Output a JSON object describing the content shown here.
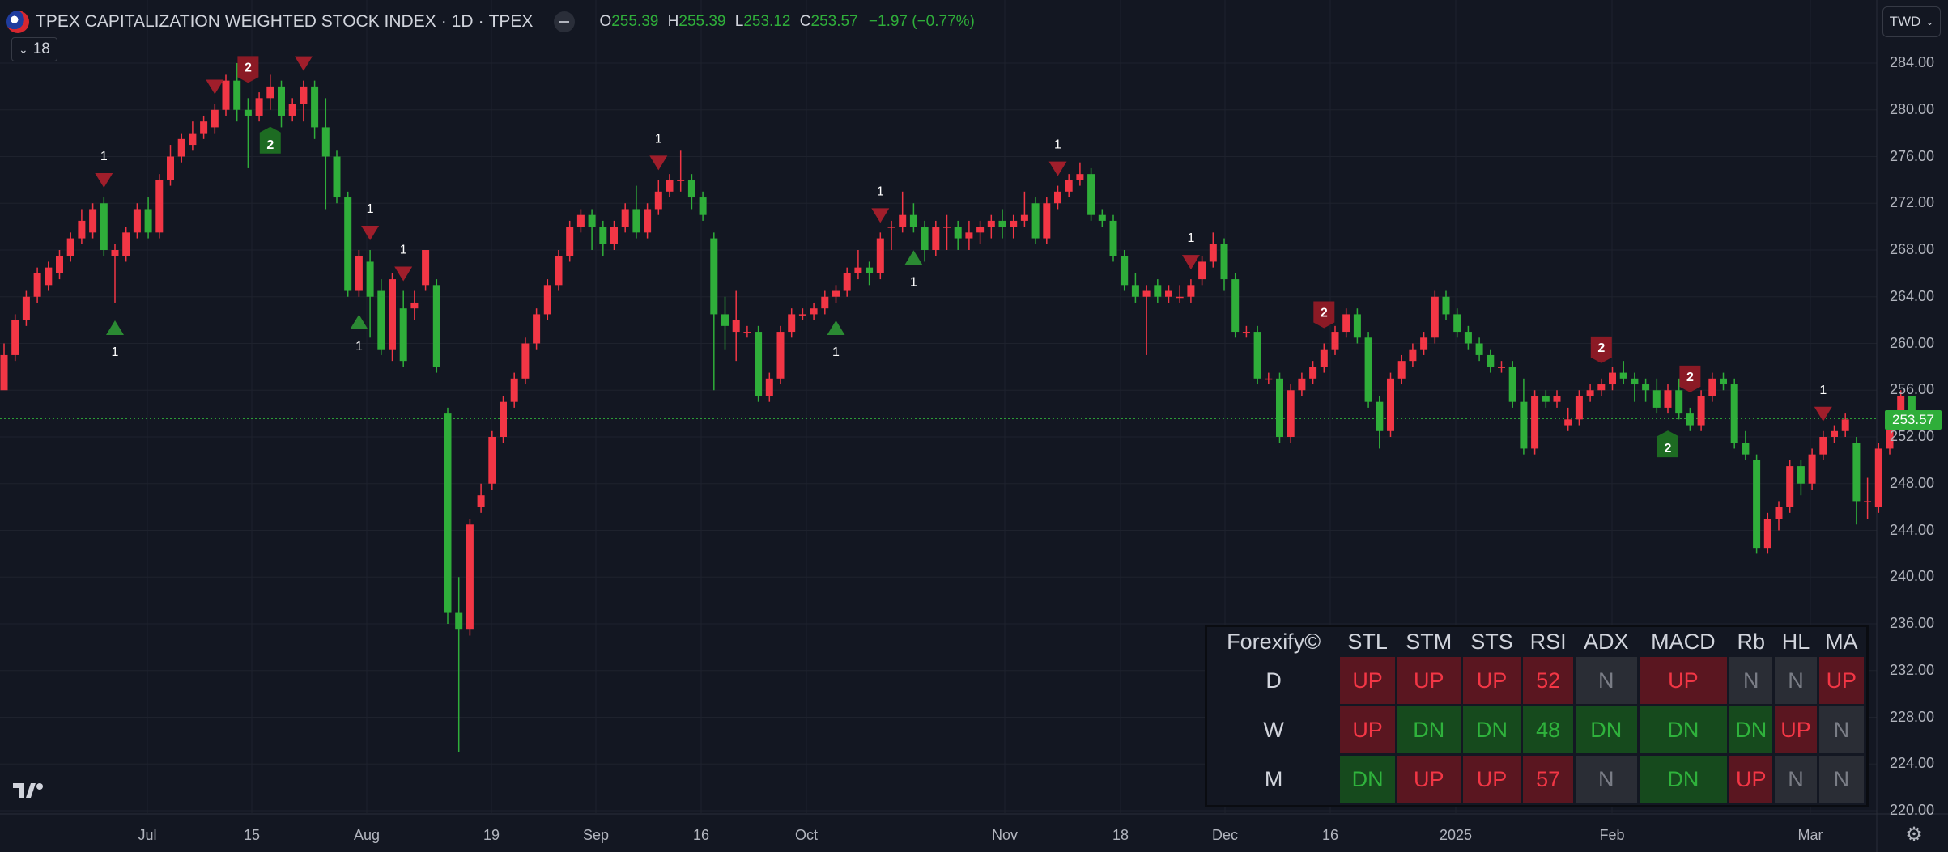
{
  "header": {
    "title": "TPEX CAPITALIZATION WEIGHTED STOCK INDEX",
    "interval": "1D",
    "exchange": "TPEX",
    "sep": "·",
    "o_label": "O",
    "o": "255.39",
    "h_label": "H",
    "h": "255.39",
    "l_label": "L",
    "l": "253.12",
    "c_label": "C",
    "c": "253.57",
    "change": "−1.97 (−0.77%)"
  },
  "indicator_pill": {
    "count": "18"
  },
  "currency_button": {
    "label": "TWD"
  },
  "last_price": "253.57",
  "colors": {
    "up": "#f23645",
    "down": "#2fae3a",
    "background": "#131722",
    "grid": "#1e222d"
  },
  "price_axis": [
    "284.00",
    "280.00",
    "276.00",
    "272.00",
    "268.00",
    "264.00",
    "260.00",
    "256.00",
    "252.00",
    "248.00",
    "244.00",
    "240.00",
    "236.00",
    "232.00",
    "228.00",
    "224.00",
    "220.00"
  ],
  "time_axis": [
    "Jul",
    "15",
    "Aug",
    "19",
    "Sep",
    "16",
    "Oct",
    "Nov",
    "18",
    "Dec",
    "16",
    "2025",
    "Feb",
    "Mar"
  ],
  "chart_data": {
    "type": "candlestick",
    "ylim": [
      220,
      286
    ],
    "candles": [
      [
        256.0,
        260.0,
        256.5,
        259.0
      ],
      [
        259.0,
        262.5,
        258.5,
        262.0
      ],
      [
        262.0,
        264.5,
        261.5,
        264.0
      ],
      [
        264.0,
        266.5,
        263.5,
        266.0
      ],
      [
        265.0,
        267.0,
        264.5,
        266.5
      ],
      [
        266.0,
        268.0,
        265.5,
        267.5
      ],
      [
        267.5,
        269.5,
        267.0,
        269.0
      ],
      [
        269.0,
        271.5,
        268.5,
        270.5
      ],
      [
        269.5,
        272.0,
        269.0,
        271.5
      ],
      [
        272.0,
        272.5,
        267.5,
        268.0
      ],
      [
        267.5,
        268.5,
        263.5,
        268.0
      ],
      [
        267.5,
        270.0,
        267.0,
        269.5
      ],
      [
        269.5,
        272.0,
        269.0,
        271.5
      ],
      [
        271.5,
        272.5,
        269.0,
        269.5
      ],
      [
        269.5,
        274.5,
        269.0,
        274.0
      ],
      [
        274.0,
        277.0,
        273.5,
        276.0
      ],
      [
        276.0,
        278.0,
        275.5,
        277.5
      ],
      [
        277.0,
        279.0,
        276.5,
        278.0
      ],
      [
        278.0,
        279.5,
        277.5,
        279.0
      ],
      [
        278.5,
        280.5,
        278.0,
        280.0
      ],
      [
        280.0,
        283.0,
        279.5,
        282.5
      ],
      [
        282.5,
        284.0,
        279.0,
        280.0
      ],
      [
        280.0,
        281.0,
        275.0,
        279.5
      ],
      [
        279.5,
        281.5,
        279.0,
        281.0
      ],
      [
        281.0,
        283.0,
        280.0,
        282.0
      ],
      [
        282.0,
        282.5,
        278.5,
        279.5
      ],
      [
        279.5,
        281.0,
        279.0,
        280.5
      ],
      [
        280.5,
        282.5,
        279.0,
        282.0
      ],
      [
        282.0,
        282.5,
        277.5,
        278.5
      ],
      [
        278.5,
        281.0,
        271.5,
        276.0
      ],
      [
        276.0,
        276.5,
        272.0,
        272.5
      ],
      [
        272.5,
        273.0,
        264.0,
        264.5
      ],
      [
        264.5,
        268.0,
        264.0,
        267.5
      ],
      [
        267.0,
        268.0,
        260.5,
        264.0
      ],
      [
        264.5,
        265.5,
        259.0,
        259.5
      ],
      [
        259.5,
        266.0,
        258.5,
        265.5
      ],
      [
        263.0,
        264.5,
        258.0,
        258.5
      ],
      [
        263.0,
        264.5,
        262.0,
        263.5
      ],
      [
        265.0,
        268.0,
        264.5,
        268.0
      ],
      [
        265.0,
        265.5,
        257.5,
        258.0
      ],
      [
        254.0,
        254.5,
        236.0,
        237.0
      ],
      [
        237.0,
        240.0,
        225.0,
        235.5
      ],
      [
        235.5,
        245.0,
        235.0,
        244.5
      ],
      [
        246.0,
        248.0,
        245.5,
        247.0
      ],
      [
        248.0,
        252.5,
        247.5,
        252.0
      ],
      [
        252.0,
        255.5,
        251.5,
        255.0
      ],
      [
        255.0,
        257.5,
        254.5,
        257.0
      ],
      [
        257.0,
        260.5,
        256.5,
        260.0
      ],
      [
        260.0,
        263.0,
        259.5,
        262.5
      ],
      [
        262.5,
        265.5,
        262.0,
        265.0
      ],
      [
        265.0,
        268.0,
        264.5,
        267.5
      ],
      [
        267.5,
        270.5,
        267.0,
        270.0
      ],
      [
        270.0,
        271.5,
        269.5,
        271.0
      ],
      [
        271.0,
        271.5,
        268.0,
        270.0
      ],
      [
        270.0,
        270.5,
        267.5,
        268.5
      ],
      [
        268.5,
        270.5,
        268.0,
        270.0
      ],
      [
        270.0,
        272.0,
        269.5,
        271.5
      ],
      [
        271.5,
        273.5,
        269.0,
        269.5
      ],
      [
        269.5,
        272.0,
        269.0,
        271.5
      ],
      [
        271.5,
        274.0,
        271.0,
        273.0
      ],
      [
        273.0,
        274.5,
        272.5,
        274.0
      ],
      [
        274.0,
        276.5,
        273.0,
        274.0
      ],
      [
        274.0,
        274.5,
        271.5,
        272.5
      ],
      [
        272.5,
        273.0,
        270.5,
        271.0
      ],
      [
        269.0,
        269.5,
        256.0,
        262.5
      ],
      [
        262.5,
        264.0,
        259.5,
        261.5
      ],
      [
        261.0,
        264.5,
        258.5,
        262.0
      ],
      [
        261.0,
        261.5,
        260.5,
        261.0
      ],
      [
        261.0,
        261.5,
        255.0,
        255.5
      ],
      [
        255.5,
        257.5,
        255.0,
        257.0
      ],
      [
        257.0,
        261.5,
        256.5,
        261.0
      ],
      [
        261.0,
        263.0,
        260.5,
        262.5
      ],
      [
        262.5,
        263.0,
        262.0,
        262.5
      ],
      [
        262.5,
        263.5,
        262.0,
        263.0
      ],
      [
        263.0,
        264.5,
        262.5,
        264.0
      ],
      [
        264.0,
        265.0,
        263.5,
        264.5
      ],
      [
        264.5,
        266.5,
        264.0,
        266.0
      ],
      [
        266.0,
        268.0,
        265.5,
        266.5
      ],
      [
        266.5,
        267.0,
        265.0,
        266.0
      ],
      [
        266.0,
        269.5,
        265.5,
        269.0
      ],
      [
        270.0,
        270.5,
        268.0,
        270.0
      ],
      [
        270.0,
        273.0,
        269.5,
        271.0
      ],
      [
        271.0,
        272.0,
        269.5,
        270.0
      ],
      [
        270.0,
        270.5,
        267.0,
        268.0
      ],
      [
        268.0,
        270.5,
        267.5,
        270.0
      ],
      [
        270.0,
        271.0,
        268.0,
        270.0
      ],
      [
        270.0,
        270.5,
        268.0,
        269.0
      ],
      [
        269.0,
        270.5,
        268.0,
        269.5
      ],
      [
        269.5,
        270.5,
        268.5,
        270.0
      ],
      [
        270.0,
        271.0,
        269.0,
        270.5
      ],
      [
        270.5,
        271.5,
        269.0,
        270.0
      ],
      [
        270.0,
        271.0,
        269.0,
        270.5
      ],
      [
        270.5,
        273.0,
        270.0,
        271.0
      ],
      [
        272.0,
        272.5,
        268.5,
        269.0
      ],
      [
        269.0,
        272.5,
        268.5,
        272.0
      ],
      [
        272.0,
        273.5,
        271.5,
        273.0
      ],
      [
        273.0,
        274.5,
        272.5,
        274.0
      ],
      [
        274.0,
        275.5,
        273.5,
        274.5
      ],
      [
        274.5,
        275.0,
        270.5,
        271.0
      ],
      [
        271.0,
        271.5,
        270.0,
        270.5
      ],
      [
        270.5,
        271.0,
        267.0,
        267.5
      ],
      [
        267.5,
        268.0,
        264.5,
        265.0
      ],
      [
        265.0,
        266.0,
        263.5,
        264.0
      ],
      [
        264.0,
        265.0,
        259.0,
        264.5
      ],
      [
        265.0,
        265.5,
        263.5,
        264.0
      ],
      [
        264.0,
        265.0,
        263.5,
        264.5
      ],
      [
        264.0,
        265.0,
        263.5,
        264.0
      ],
      [
        264.0,
        265.5,
        263.5,
        265.0
      ],
      [
        265.5,
        267.5,
        265.0,
        267.0
      ],
      [
        267.0,
        269.5,
        266.5,
        268.5
      ],
      [
        268.5,
        269.0,
        264.5,
        265.5
      ],
      [
        265.5,
        266.0,
        260.5,
        261.0
      ],
      [
        261.0,
        261.5,
        260.5,
        261.0
      ],
      [
        261.0,
        261.5,
        256.5,
        257.0
      ],
      [
        257.0,
        257.5,
        256.5,
        257.0
      ],
      [
        257.0,
        257.5,
        251.5,
        252.0
      ],
      [
        252.0,
        256.5,
        251.5,
        256.0
      ],
      [
        256.0,
        257.5,
        255.5,
        257.0
      ],
      [
        257.0,
        258.5,
        256.5,
        258.0
      ],
      [
        258.0,
        260.0,
        257.5,
        259.5
      ],
      [
        259.5,
        261.5,
        259.0,
        261.0
      ],
      [
        261.0,
        263.0,
        260.5,
        262.5
      ],
      [
        262.5,
        263.0,
        260.0,
        260.5
      ],
      [
        260.5,
        261.0,
        254.5,
        255.0
      ],
      [
        255.0,
        255.5,
        251.0,
        252.5
      ],
      [
        252.5,
        257.5,
        252.0,
        257.0
      ],
      [
        257.0,
        259.0,
        256.5,
        258.5
      ],
      [
        258.5,
        260.0,
        258.0,
        259.5
      ],
      [
        259.5,
        261.0,
        259.0,
        260.5
      ],
      [
        260.5,
        264.5,
        260.0,
        264.0
      ],
      [
        264.0,
        264.5,
        262.0,
        262.5
      ],
      [
        262.5,
        263.0,
        260.5,
        261.0
      ],
      [
        261.0,
        261.5,
        259.5,
        260.0
      ],
      [
        260.0,
        260.5,
        258.5,
        259.0
      ],
      [
        259.0,
        259.5,
        257.5,
        258.0
      ],
      [
        258.0,
        258.5,
        257.5,
        258.0
      ],
      [
        258.0,
        258.5,
        254.5,
        255.0
      ],
      [
        255.0,
        257.0,
        250.5,
        251.0
      ],
      [
        251.0,
        256.0,
        250.5,
        255.5
      ],
      [
        255.5,
        256.0,
        254.5,
        255.0
      ],
      [
        255.0,
        256.0,
        254.5,
        255.5
      ],
      [
        253.0,
        254.5,
        252.5,
        253.5
      ],
      [
        253.5,
        256.0,
        253.0,
        255.5
      ],
      [
        255.5,
        256.5,
        255.0,
        256.0
      ],
      [
        256.0,
        257.0,
        255.5,
        256.5
      ],
      [
        256.5,
        258.0,
        256.0,
        257.5
      ],
      [
        257.5,
        258.5,
        256.5,
        257.0
      ],
      [
        257.0,
        257.5,
        255.0,
        256.5
      ],
      [
        256.5,
        257.0,
        255.0,
        256.0
      ],
      [
        256.0,
        257.0,
        254.0,
        254.5
      ],
      [
        254.5,
        256.5,
        254.0,
        256.0
      ],
      [
        256.0,
        257.0,
        253.5,
        254.0
      ],
      [
        254.0,
        254.5,
        252.5,
        253.0
      ],
      [
        253.0,
        256.0,
        252.5,
        255.5
      ],
      [
        255.5,
        257.5,
        255.0,
        257.0
      ],
      [
        257.0,
        257.5,
        256.0,
        256.5
      ],
      [
        256.5,
        257.0,
        251.0,
        251.5
      ],
      [
        251.5,
        252.5,
        250.0,
        250.5
      ],
      [
        250.0,
        250.5,
        242.0,
        242.5
      ],
      [
        242.5,
        245.5,
        242.0,
        245.0
      ],
      [
        245.0,
        246.5,
        244.0,
        246.0
      ],
      [
        246.0,
        250.0,
        245.5,
        249.5
      ],
      [
        249.5,
        250.0,
        247.0,
        248.0
      ],
      [
        248.0,
        251.0,
        247.5,
        250.5
      ],
      [
        250.5,
        252.5,
        250.0,
        252.0
      ],
      [
        252.0,
        253.0,
        251.5,
        252.5
      ],
      [
        252.5,
        254.0,
        252.0,
        253.5
      ],
      [
        251.5,
        252.0,
        244.5,
        246.5
      ],
      [
        246.5,
        248.5,
        245.0,
        246.5
      ],
      [
        246.0,
        251.5,
        245.5,
        251.0
      ],
      [
        251.0,
        253.5,
        250.5,
        253.0
      ],
      [
        253.0,
        256.0,
        252.5,
        255.5
      ],
      [
        255.5,
        255.5,
        253.0,
        253.5
      ]
    ],
    "signals": [
      {
        "kind": "sell",
        "label": "1",
        "index": 9
      },
      {
        "kind": "buy",
        "label": "1",
        "index": 10
      },
      {
        "kind": "sell",
        "label": "",
        "index": 19
      },
      {
        "kind": "sell",
        "label": "2",
        "index": 22
      },
      {
        "kind": "sell",
        "label": "",
        "index": 27
      },
      {
        "kind": "buy",
        "label": "2",
        "index": 24
      },
      {
        "kind": "sell",
        "label": "1",
        "index": 33
      },
      {
        "kind": "sell",
        "label": "1",
        "index": 36
      },
      {
        "kind": "buy",
        "label": "1",
        "index": 32
      },
      {
        "kind": "sell",
        "label": "1",
        "index": 59
      },
      {
        "kind": "buy",
        "label": "1",
        "index": 75
      },
      {
        "kind": "sell",
        "label": "1",
        "index": 79
      },
      {
        "kind": "buy",
        "label": "1",
        "index": 82
      },
      {
        "kind": "sell",
        "label": "1",
        "index": 95
      },
      {
        "kind": "sell",
        "label": "1",
        "index": 107
      },
      {
        "kind": "sell",
        "label": "2",
        "index": 119
      },
      {
        "kind": "sell",
        "label": "2",
        "index": 144
      },
      {
        "kind": "sell",
        "label": "2",
        "index": 152
      },
      {
        "kind": "buy",
        "label": "2",
        "index": 150
      },
      {
        "kind": "sell",
        "label": "1",
        "index": 164
      }
    ]
  },
  "forexify_table": {
    "brand": "Forexify©",
    "columns": [
      "STL",
      "STM",
      "STS",
      "RSI",
      "ADX",
      "MACD",
      "Rb",
      "HL",
      "MA"
    ],
    "rows": [
      {
        "label": "D",
        "cells": [
          {
            "v": "UP",
            "s": "up"
          },
          {
            "v": "UP",
            "s": "up"
          },
          {
            "v": "UP",
            "s": "up"
          },
          {
            "v": "52",
            "s": "up"
          },
          {
            "v": "N",
            "s": "n"
          },
          {
            "v": "UP",
            "s": "up"
          },
          {
            "v": "N",
            "s": "n"
          },
          {
            "v": "N",
            "s": "n"
          },
          {
            "v": "UP",
            "s": "up"
          }
        ]
      },
      {
        "label": "W",
        "cells": [
          {
            "v": "UP",
            "s": "up"
          },
          {
            "v": "DN",
            "s": "dn"
          },
          {
            "v": "DN",
            "s": "dn"
          },
          {
            "v": "48",
            "s": "dn"
          },
          {
            "v": "DN",
            "s": "dn"
          },
          {
            "v": "DN",
            "s": "dn"
          },
          {
            "v": "DN",
            "s": "dn"
          },
          {
            "v": "UP",
            "s": "up"
          },
          {
            "v": "N",
            "s": "n"
          }
        ]
      },
      {
        "label": "M",
        "cells": [
          {
            "v": "DN",
            "s": "dn"
          },
          {
            "v": "UP",
            "s": "up"
          },
          {
            "v": "UP",
            "s": "up"
          },
          {
            "v": "57",
            "s": "up"
          },
          {
            "v": "N",
            "s": "n"
          },
          {
            "v": "DN",
            "s": "dn"
          },
          {
            "v": "UP",
            "s": "up"
          },
          {
            "v": "N",
            "s": "n"
          },
          {
            "v": "N",
            "s": "n"
          }
        ]
      }
    ]
  }
}
